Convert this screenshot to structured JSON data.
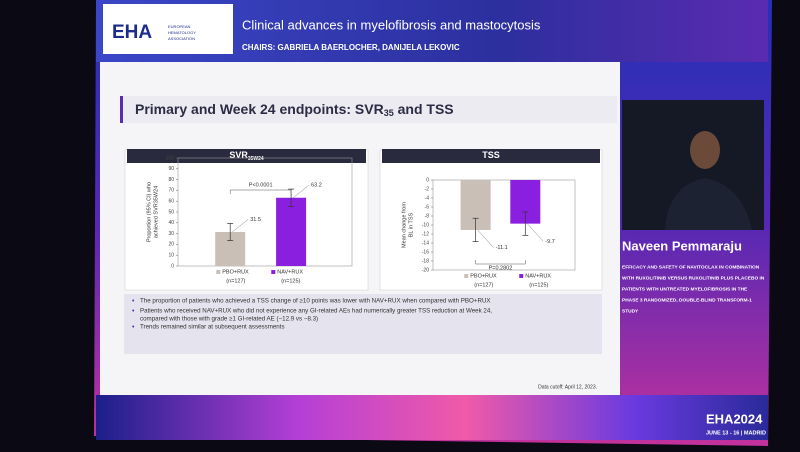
{
  "header": {
    "logo": "EHA",
    "logo_sub": [
      "EUROPEAN",
      "HEMATOLOGY",
      "ASSOCIATION"
    ],
    "session": "Clinical advances in myelofibrosis and mastocytosis",
    "chairs": "CHAIRS: GABRIELA BAERLOCHER, DANIJELA LEKOVIC"
  },
  "slide_title": [
    "Primary and Week 24 endpoints: SVR",
    "35",
    " and TSS"
  ],
  "chart_data": [
    {
      "type": "bar",
      "title": [
        "SVR",
        "35W24"
      ],
      "y_label": [
        "Proportion (95% CI) who",
        "achieved SVR35W24"
      ],
      "categories": [
        "PBO+RUX",
        "NAV+RUX"
      ],
      "n_labels": [
        "(n=127)",
        "(n=125)"
      ],
      "values": [
        31.5,
        63.2
      ],
      "errors": [
        8,
        8
      ],
      "colors": [
        "#c9bfb7",
        "#8b1fe0"
      ],
      "ylim": [
        0,
        100
      ],
      "yticks": [
        0,
        10,
        20,
        30,
        40,
        50,
        60,
        70,
        80,
        90,
        100
      ],
      "annotation": "P<0.0001"
    },
    {
      "type": "bar",
      "title": [
        "TSS"
      ],
      "y_label": [
        "Mean change from",
        "BL in TSS"
      ],
      "categories": [
        "PBO+RUX",
        "NAV+RUX"
      ],
      "n_labels": [
        "(n=127)",
        "(n=125)"
      ],
      "values": [
        -11.1,
        -9.7
      ],
      "errors": [
        2.6,
        2.6
      ],
      "colors": [
        "#c9bfb7",
        "#8b1fe0"
      ],
      "ylim": [
        -20,
        0
      ],
      "yticks": [
        0,
        -2,
        -4,
        -6,
        -8,
        -10,
        -12,
        -14,
        -16,
        -18,
        -20
      ],
      "annotation": "P=0.2802"
    }
  ],
  "bullets": [
    "The proportion of patients who achieved a TSS change of ≥10 points was lower with NAV+RUX when compared with PBO+RUX",
    [
      "Patients who received NAV+RUX who did not experience any GI-related AEs had numerically greater TSS reduction at Week 24,",
      "compared with those with grade ≥1 GI-related AE (−12.9 vs −8.3)"
    ],
    "Trends remained similar at subsequent assessments"
  ],
  "cutoff": "Data cutoff: April 12, 2023.",
  "speaker": "Naveen Pemmaraju",
  "study": [
    "EFFICACY AND SAFETY OF NAVITOCLAX IN COMBINATION",
    "WITH RUXOLITINIB VERSUS RUXOLITINIB PLUS PLACEBO IN",
    "PATIENTS WITH UNTREATED MYELOFIBROSIS IN THE",
    "PHASE 3 RANDOMIZED, DOUBLE-BLIND TRANSFORM-1",
    "STUDY"
  ],
  "event": "EHA2024",
  "event_date": "JUNE 13 - 16 | MADRID"
}
